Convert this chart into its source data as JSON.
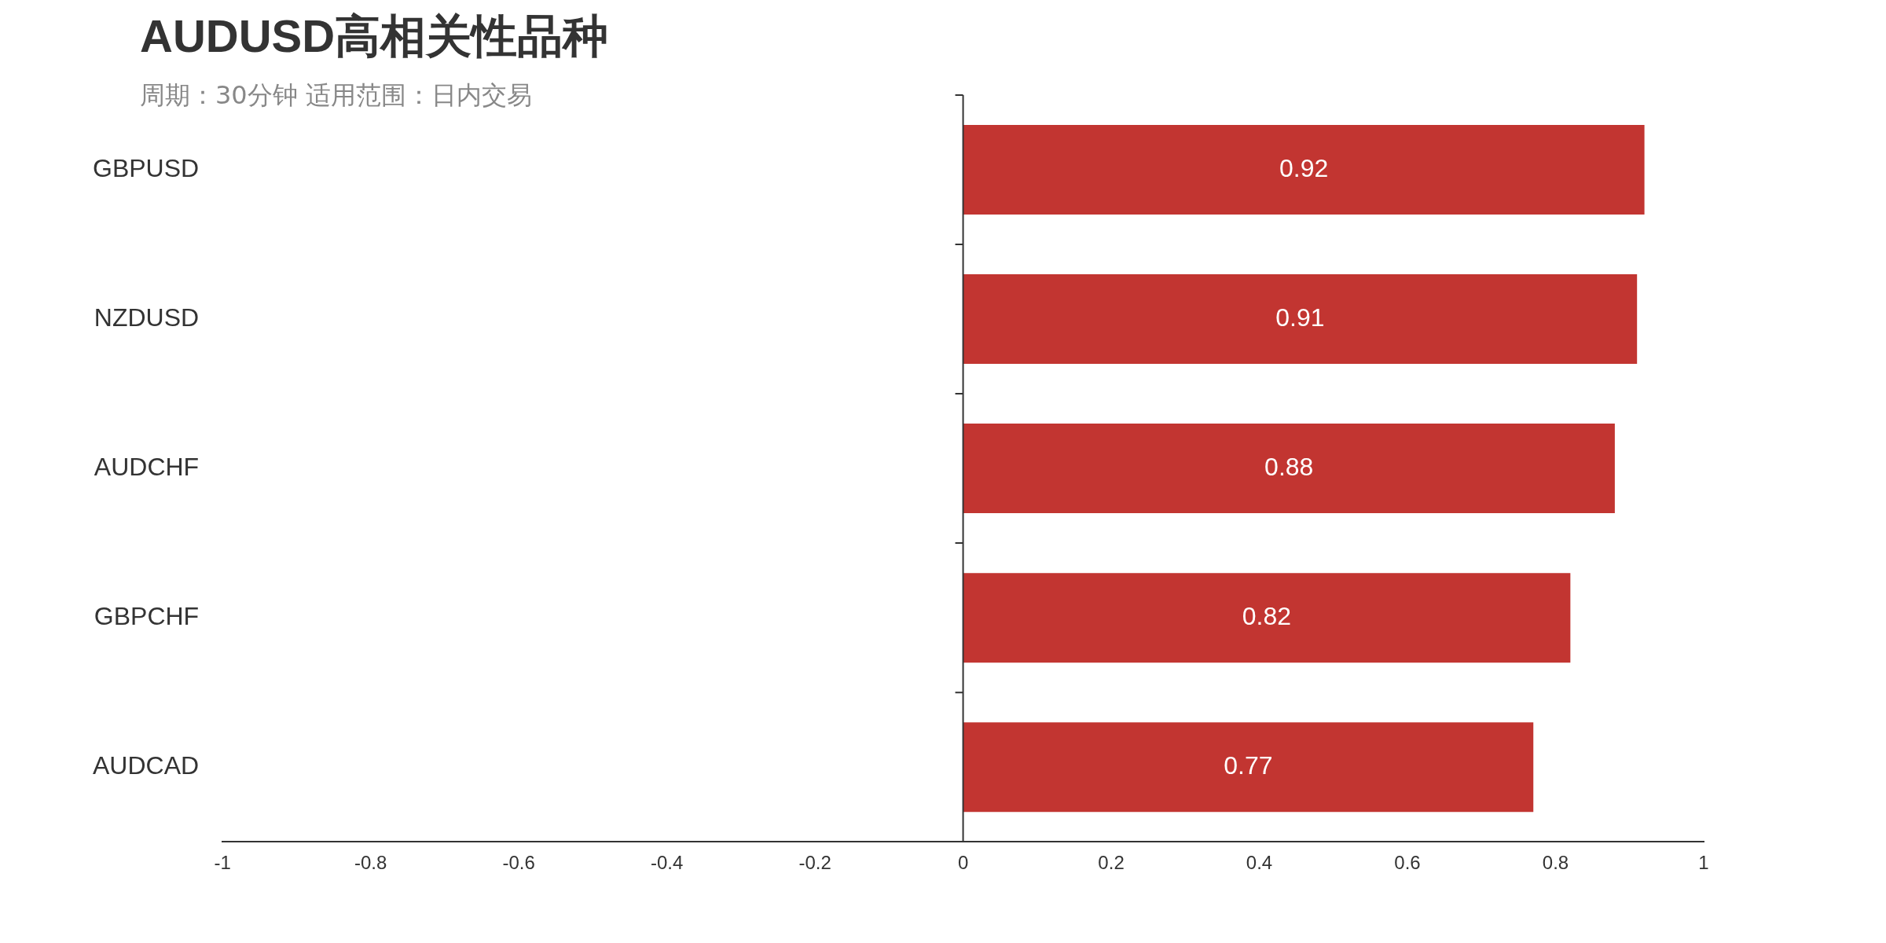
{
  "chart_data": {
    "type": "bar",
    "orientation": "horizontal",
    "title": "AUDUSD高相关性品种",
    "subtitle": "周期：30分钟 适用范围：日内交易",
    "categories": [
      "GBPUSD",
      "NZDUSD",
      "AUDCHF",
      "GBPCHF",
      "AUDCAD"
    ],
    "values": [
      0.92,
      0.91,
      0.88,
      0.82,
      0.77
    ],
    "color": "#c23531",
    "xlim": [
      -1,
      1
    ],
    "xticks": [
      -1,
      -0.8,
      -0.6,
      -0.4,
      -0.2,
      0,
      0.2,
      0.4,
      0.6,
      0.8,
      1
    ],
    "data_labels": true
  }
}
